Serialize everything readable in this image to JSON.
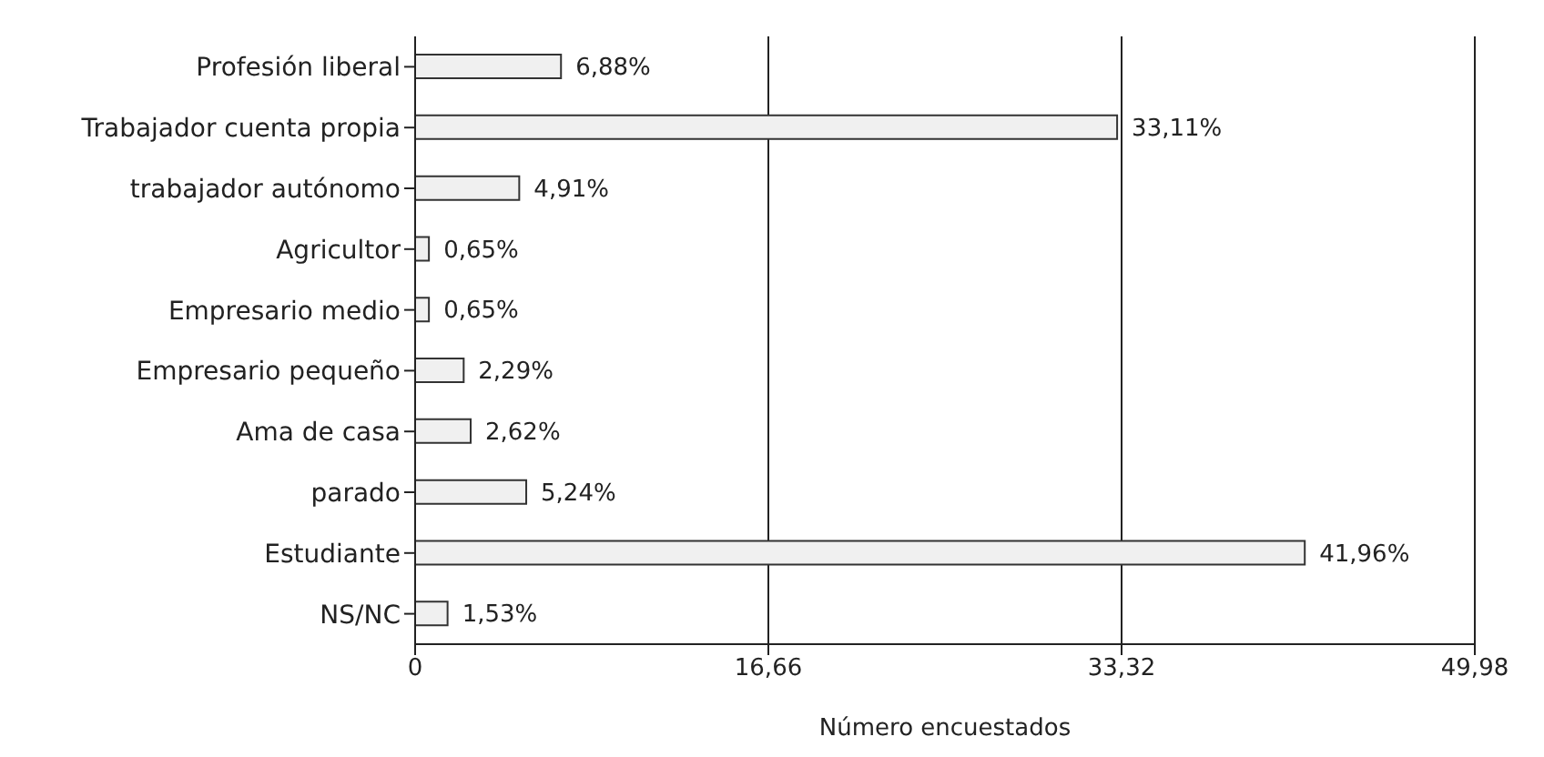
{
  "chart_data": {
    "type": "bar",
    "orientation": "horizontal",
    "xlabel": "Número encuestados",
    "categories": [
      "Profesión liberal",
      "Trabajador cuenta propia",
      "trabajador autónomo",
      "Agricultor",
      "Empresario medio",
      "Empresario pequeño",
      "Ama de casa",
      "parado",
      "Estudiante",
      "NS/NC"
    ],
    "values": [
      6.88,
      33.11,
      4.91,
      0.65,
      0.65,
      2.29,
      2.62,
      5.24,
      41.96,
      1.53
    ],
    "value_labels": [
      "6,88%",
      "33,11%",
      "4,91%",
      "0,65%",
      "0,65%",
      "2,29%",
      "2,62%",
      "5,24%",
      "41,96%",
      "1,53%"
    ],
    "color": "#f0f0f0",
    "xlim": [
      0,
      49.98
    ],
    "xticks": [
      0,
      {
        "value": 16.66,
        "label": "16,66"
      },
      {
        "value": 33.32,
        "label": "33,32"
      },
      {
        "value": 49.98,
        "label": "49,98"
      }
    ],
    "grid": "x"
  }
}
